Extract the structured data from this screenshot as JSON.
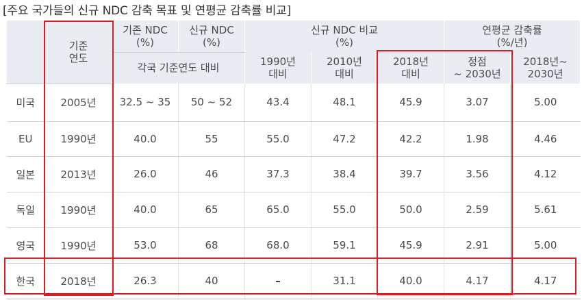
{
  "title": "[주요 국가들의 신규 NDC 감축 목표 및 연평균 감축률 비교]",
  "headers": {
    "country": "",
    "base_year": "기준\n연도",
    "old_ndc": "기존 NDC\n(%)",
    "new_ndc": "신규 NDC\n(%)",
    "new_ndc_comparison": "신규 NDC 비교\n(%)",
    "annual_rate": "연평균 감축률\n(%/년)",
    "vs_base_year": "각국 기준연도 대비",
    "vs_1990": "1990년\n대비",
    "vs_2010": "2010년\n대비",
    "vs_2018": "2018년\n대비",
    "peak_to_2030": "정점\n~ 2030년",
    "from_2018_to_2030": "2018년~\n2030년"
  },
  "rows": [
    {
      "country": "미국",
      "base_year": "2005년",
      "old_ndc": "32.5 ~ 35",
      "new_ndc": "50 ~ 52",
      "vs_1990": "43.4",
      "vs_2010": "48.1",
      "vs_2018": "45.9",
      "peak_to_2030": "3.07",
      "from_2018": "5.00"
    },
    {
      "country": "EU",
      "base_year": "1990년",
      "old_ndc": "40.0",
      "new_ndc": "55",
      "vs_1990": "55.0",
      "vs_2010": "47.2",
      "vs_2018": "42.2",
      "peak_to_2030": "1.98",
      "from_2018": "4.46"
    },
    {
      "country": "일본",
      "base_year": "2013년",
      "old_ndc": "26.0",
      "new_ndc": "46",
      "vs_1990": "37.3",
      "vs_2010": "38.4",
      "vs_2018": "39.7",
      "peak_to_2030": "3.56",
      "from_2018": "4.12"
    },
    {
      "country": "독일",
      "base_year": "1990년",
      "old_ndc": "40.0",
      "new_ndc": "65",
      "vs_1990": "65.0",
      "vs_2010": "55.0",
      "vs_2018": "50.0",
      "peak_to_2030": "2.59",
      "from_2018": "5.61"
    },
    {
      "country": "영국",
      "base_year": "1990년",
      "old_ndc": "53.0",
      "new_ndc": "68",
      "vs_1990": "68.0",
      "vs_2010": "59.1",
      "vs_2018": "45.9",
      "peak_to_2030": "2.91",
      "from_2018": "5.00"
    },
    {
      "country": "한국",
      "base_year": "2018년",
      "old_ndc": "26.3",
      "new_ndc": "40",
      "vs_1990": "–",
      "vs_2010": "31.1",
      "vs_2018": "40.0",
      "peak_to_2030": "4.17",
      "from_2018": "4.17"
    }
  ],
  "highlight_color": "#e3191c"
}
